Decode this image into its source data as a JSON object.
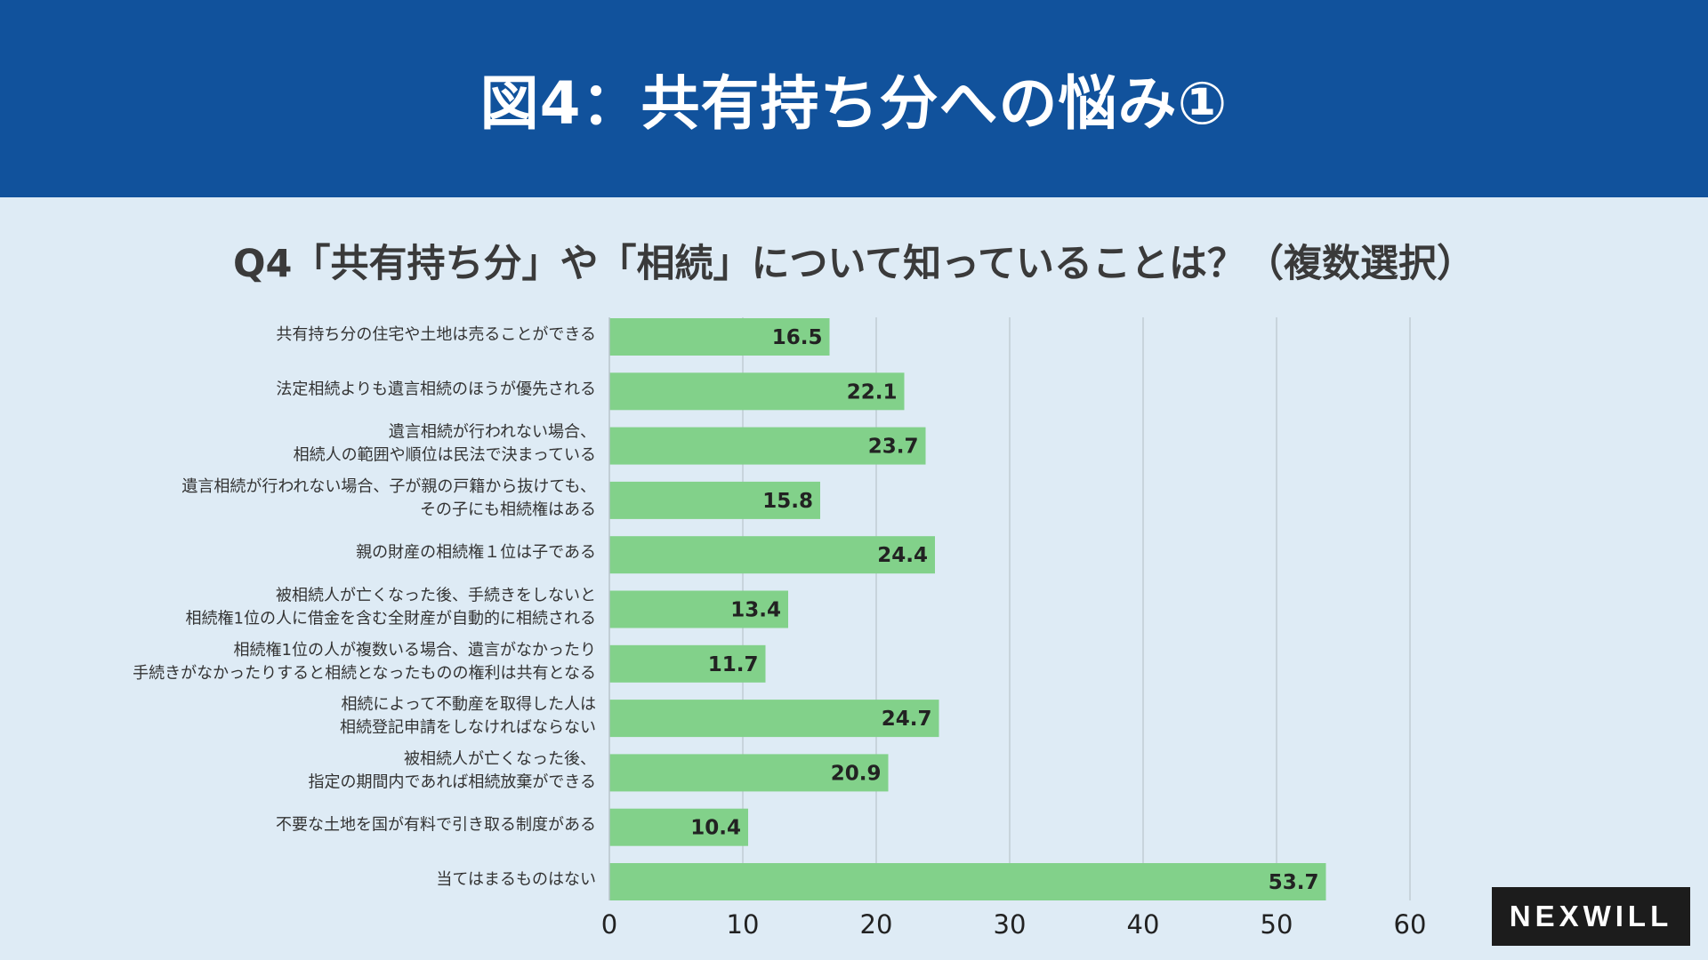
{
  "header": {
    "title": "図4：共有持ち分への悩み①"
  },
  "question": "Q4「共有持ち分」や「相続」について知っていることは？（複数選択）",
  "logo": {
    "text": "NEXWILL"
  },
  "colors": {
    "header_bg": "#11529c",
    "page_bg": "#deebf5",
    "bar": "#82d18a",
    "grid": "#b9c4cc"
  },
  "chart_data": {
    "type": "bar",
    "orientation": "horizontal",
    "title": "Q4「共有持ち分」や「相続」について知っていることは？（複数選択）",
    "xlabel": "",
    "ylabel": "",
    "xlim": [
      0,
      60
    ],
    "xticks": [
      0,
      10,
      20,
      30,
      40,
      50,
      60
    ],
    "grid": true,
    "categories": [
      [
        "共有持ち分の住宅や土地は売ることができる"
      ],
      [
        "法定相続よりも遺言相続のほうが優先される"
      ],
      [
        "遺言相続が行われない場合、",
        "相続人の範囲や順位は民法で決まっている"
      ],
      [
        "遺言相続が行われない場合、子が親の戸籍から抜けても、",
        "その子にも相続権はある"
      ],
      [
        "親の財産の相続権１位は子である"
      ],
      [
        "被相続人が亡くなった後、手続きをしないと",
        "相続権1位の人に借金を含む全財産が自動的に相続される"
      ],
      [
        "相続権1位の人が複数いる場合、遺言がなかったり",
        "手続きがなかったりすると相続となったものの権利は共有となる"
      ],
      [
        "相続によって不動産を取得した人は",
        "相続登記申請をしなければならない"
      ],
      [
        "被相続人が亡くなった後、",
        "指定の期間内であれば相続放棄ができる"
      ],
      [
        "不要な土地を国が有料で引き取る制度がある"
      ],
      [
        "当てはまるものはない"
      ]
    ],
    "values": [
      16.5,
      22.1,
      23.7,
      15.8,
      24.4,
      13.4,
      11.7,
      24.7,
      20.9,
      10.4,
      53.7
    ],
    "value_labels": [
      "16.5",
      "22.1",
      "23.7",
      "15.8",
      "24.4",
      "13.4",
      "11.7",
      "24.7",
      "20.9",
      "10.4",
      "53.7"
    ]
  }
}
